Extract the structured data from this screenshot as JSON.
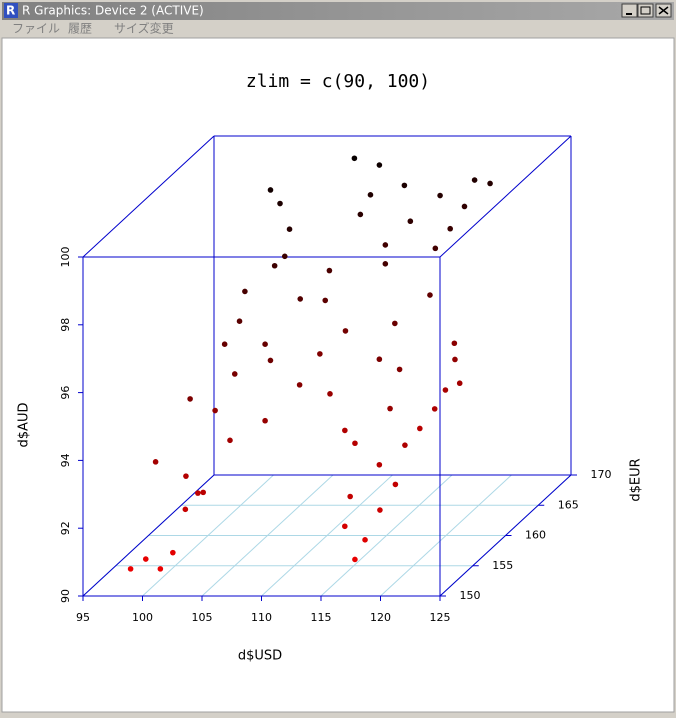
{
  "window": {
    "title": "R Graphics: Device 2 (ACTIVE)",
    "menu": [
      "ファイル",
      "履歴",
      "サイズ変更"
    ]
  },
  "chart_data": {
    "type": "scatter3d",
    "title": "zlim = c(90, 100)",
    "x_label": "d$USD",
    "y_label": "d$EUR",
    "z_label": "d$AUD",
    "xlim": [
      95,
      125
    ],
    "xticks": [
      95,
      100,
      105,
      110,
      115,
      120,
      125
    ],
    "ylim": [
      150,
      170
    ],
    "yticks": [
      150,
      155,
      160,
      165,
      170
    ],
    "zlim": [
      90,
      100
    ],
    "zticks": [
      90,
      92,
      94,
      96,
      98,
      100
    ],
    "grid": true,
    "box_color": "#0000cc",
    "grid_color": "#add8e6",
    "color_low": "#ff0000",
    "color_high": "#000000",
    "x": [
      99,
      100,
      101.5,
      102,
      102.5,
      103,
      102,
      100,
      104,
      102.5,
      103.3,
      105.2,
      104.5,
      104.8,
      103.1,
      103.2,
      102.5,
      103.9,
      102.8,
      105.9,
      106.9,
      107,
      101.8,
      104.6,
      107.2,
      108.8,
      107.9,
      110,
      109.5,
      111.6,
      108,
      108.2,
      109.9,
      108.3,
      109.7,
      111.5,
      112.9,
      109.8,
      112.1,
      113.7,
      112.7,
      114.6,
      114.4,
      116.1,
      116.4,
      118.2,
      116.6,
      118.5,
      115.8,
      115.9,
      117.6,
      117.3,
      118.3,
      118.2,
      116.9,
      116.6,
      115.1,
      116.5,
      115.8,
      115.9,
      117.4,
      117.2,
      117.4,
      116.7,
      118.4,
      118
    ],
    "y": [
      150,
      150.5,
      150,
      151,
      152,
      153,
      153,
      152,
      152,
      165,
      165,
      163,
      162,
      163,
      160,
      159,
      158,
      157,
      156,
      158,
      157,
      156,
      154,
      155,
      161,
      158,
      168,
      168,
      166,
      166,
      164,
      163,
      163,
      162,
      161,
      160,
      159,
      167,
      168,
      166,
      164,
      162,
      160,
      160,
      158,
      157,
      156,
      155,
      153,
      152,
      152,
      151,
      153,
      170,
      170,
      169,
      168,
      167,
      166,
      165,
      166,
      165,
      163,
      162,
      165,
      165
    ],
    "z": [
      90.8,
      91,
      90.8,
      91.1,
      92.2,
      92.5,
      93,
      93.6,
      92.7,
      99.3,
      98.9,
      98.5,
      97.6,
      97.7,
      97.2,
      96.5,
      96,
      95.3,
      94.4,
      96,
      95.7,
      94.1,
      95.1,
      93.7,
      96.8,
      94.8,
      99.7,
      99.5,
      98.4,
      97.5,
      97.1,
      96.4,
      95.5,
      95,
      94,
      93.1,
      92.9,
      98.8,
      98.9,
      98.2,
      97.3,
      95.9,
      95.2,
      94.9,
      94.1,
      93.2,
      92.8,
      92.4,
      92.4,
      91.7,
      91.3,
      90.9,
      92,
      98.6,
      98.7,
      98.1,
      98.6,
      97.8,
      97.4,
      96.2,
      94.6,
      93.4,
      93.2,
      92.8,
      93.6,
      94.3
    ]
  }
}
